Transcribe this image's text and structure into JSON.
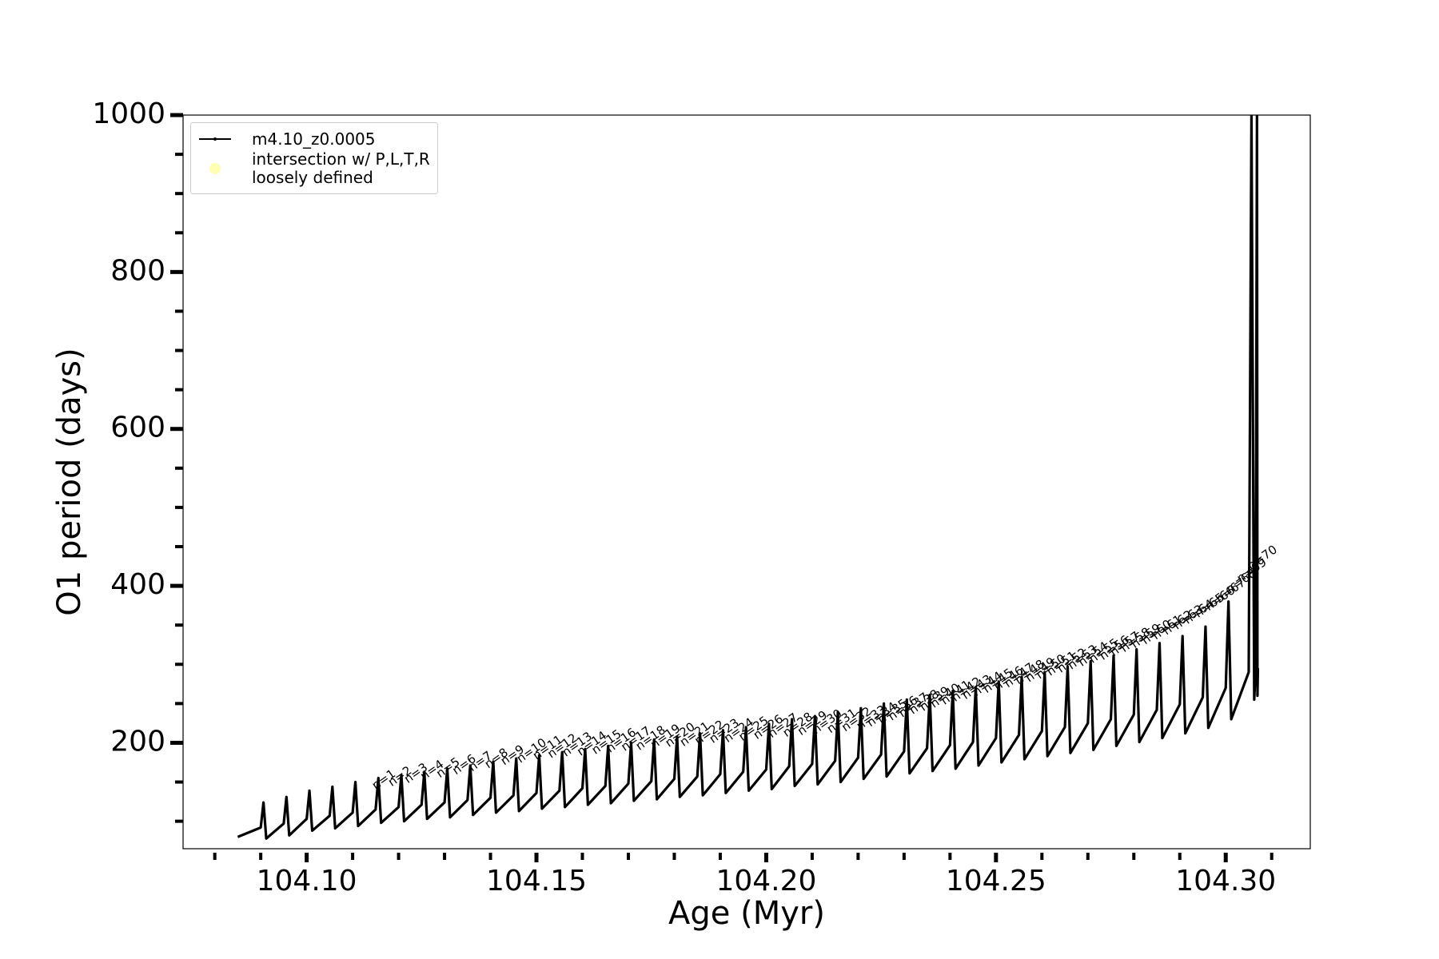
{
  "chart_data": {
    "type": "line",
    "xlabel": "Age (Myr)",
    "ylabel": "O1 period (days)",
    "xlim": [
      104.0731,
      104.3184
    ],
    "ylim": [
      65,
      1000
    ],
    "xticks": [
      {
        "value": 104.1,
        "label": "104.10"
      },
      104.15,
      {
        "value": 104.2,
        "label": "104.20"
      },
      104.25,
      {
        "value": 104.3,
        "label": "104.30"
      }
    ],
    "xticks_minor": [
      104.08,
      104.09,
      104.11,
      104.12,
      104.13,
      104.14,
      104.16,
      104.17,
      104.18,
      104.19,
      104.21,
      104.22,
      104.23,
      104.24,
      104.26,
      104.27,
      104.28,
      104.29,
      104.31
    ],
    "yticks": [
      200,
      400,
      600,
      800,
      1000
    ],
    "yticks_minor": [
      100,
      150,
      250,
      300,
      350,
      450,
      500,
      550,
      650,
      700,
      750,
      850,
      900,
      950
    ],
    "legend": "upper left",
    "series": [
      {
        "name": "m4.10_z0.0005",
        "color": "#000000",
        "marker": "dot",
        "x": [
          104.085,
          104.09,
          104.0906,
          104.0912,
          104.095,
          104.0956,
          104.0962,
          104.1,
          104.1006,
          104.1012,
          104.105,
          104.1056,
          104.1062,
          104.11,
          104.1106,
          104.1112,
          104.115,
          104.1156,
          104.1162,
          104.12,
          104.1206,
          104.1212,
          104.125,
          104.1256,
          104.1262,
          104.13,
          104.1306,
          104.1312,
          104.135,
          104.1356,
          104.1362,
          104.14,
          104.1406,
          104.1412,
          104.145,
          104.1456,
          104.1462,
          104.15,
          104.1506,
          104.1512,
          104.155,
          104.1556,
          104.1562,
          104.16,
          104.1606,
          104.1612,
          104.165,
          104.1656,
          104.1662,
          104.17,
          104.1706,
          104.1712,
          104.175,
          104.1756,
          104.1762,
          104.18,
          104.1806,
          104.1812,
          104.185,
          104.1856,
          104.1862,
          104.19,
          104.1906,
          104.1912,
          104.195,
          104.1956,
          104.1962,
          104.2,
          104.2006,
          104.2012,
          104.205,
          104.2056,
          104.2062,
          104.21,
          104.2106,
          104.2112,
          104.215,
          104.2156,
          104.2162,
          104.22,
          104.2206,
          104.2212,
          104.225,
          104.2256,
          104.2262,
          104.23,
          104.2306,
          104.2312,
          104.235,
          104.2356,
          104.2362,
          104.24,
          104.2406,
          104.2412,
          104.245,
          104.2456,
          104.2462,
          104.25,
          104.2506,
          104.2512,
          104.255,
          104.2556,
          104.2562,
          104.26,
          104.2606,
          104.2612,
          104.265,
          104.2656,
          104.2662,
          104.27,
          104.2706,
          104.2712,
          104.275,
          104.2756,
          104.2762,
          104.28,
          104.2806,
          104.2812,
          104.285,
          104.2856,
          104.2862,
          104.29,
          104.2906,
          104.2912,
          104.295,
          104.2956,
          104.2962,
          104.3,
          104.3006,
          104.3012,
          104.305,
          104.3056,
          104.3062,
          104.3065,
          104.3068,
          104.3069,
          104.307
        ],
        "values": [
          80,
          92,
          124,
          78,
          97,
          131,
          82,
          103,
          139,
          88,
          107,
          144,
          91,
          111,
          150,
          94,
          115,
          155,
          98,
          118,
          159,
          100,
          121,
          163,
          103,
          124,
          167,
          105,
          127,
          171,
          108,
          130,
          176,
          111,
          133,
          180,
          113,
          136,
          184,
          116,
          139,
          188,
          118,
          142,
          192,
          121,
          145,
          196,
          123,
          148,
          200,
          126,
          151,
          204,
          128,
          154,
          208,
          131,
          157,
          212,
          133,
          160,
          216,
          136,
          163,
          220,
          139,
          166,
          224,
          141,
          170,
          230,
          145,
          173,
          234,
          147,
          177,
          239,
          150,
          181,
          244,
          154,
          185,
          250,
          157,
          189,
          255,
          161,
          193,
          261,
          164,
          197,
          266,
          167,
          201,
          271,
          171,
          206,
          278,
          175,
          210,
          284,
          179,
          215,
          290,
          183,
          220,
          297,
          187,
          225,
          304,
          191,
          230,
          311,
          196,
          236,
          319,
          201,
          242,
          327,
          206,
          249,
          336,
          212,
          258,
          348,
          219,
          270,
          380,
          230,
          290,
          1000,
          255,
          295,
          1000,
          260,
          295
        ]
      },
      {
        "name": "intersection w/ P,L,T,R\nloosely defined",
        "color": "#ffffb3",
        "marker": "circle",
        "x": [],
        "values": []
      }
    ],
    "annotations": [
      {
        "text": "n=1",
        "x": 104.115,
        "y": 140
      },
      {
        "text": "n=2",
        "x": 104.1185,
        "y": 144
      },
      {
        "text": "n=3",
        "x": 104.122,
        "y": 148
      },
      {
        "text": "n=4",
        "x": 104.1255,
        "y": 152
      },
      {
        "text": "n=5",
        "x": 104.129,
        "y": 155
      },
      {
        "text": "n=6",
        "x": 104.1325,
        "y": 159
      },
      {
        "text": "n=7",
        "x": 104.136,
        "y": 163
      },
      {
        "text": "n=8",
        "x": 104.1395,
        "y": 167
      },
      {
        "text": "n=9",
        "x": 104.143,
        "y": 171
      },
      {
        "text": "n=10",
        "x": 104.1465,
        "y": 174
      },
      {
        "text": "n=11",
        "x": 104.15,
        "y": 178
      },
      {
        "text": "n=12",
        "x": 104.1532,
        "y": 180
      },
      {
        "text": "n=13",
        "x": 104.1564,
        "y": 182
      },
      {
        "text": "n=14",
        "x": 104.1596,
        "y": 183
      },
      {
        "text": "n=15",
        "x": 104.1628,
        "y": 185
      },
      {
        "text": "n=16",
        "x": 104.166,
        "y": 187
      },
      {
        "text": "n=17",
        "x": 104.1692,
        "y": 189
      },
      {
        "text": "n=18",
        "x": 104.1724,
        "y": 190
      },
      {
        "text": "n=19",
        "x": 104.1756,
        "y": 192
      },
      {
        "text": "n=20",
        "x": 104.1788,
        "y": 194
      },
      {
        "text": "n=21",
        "x": 104.182,
        "y": 195
      },
      {
        "text": "n=22",
        "x": 104.1852,
        "y": 197
      },
      {
        "text": "n=23",
        "x": 104.1884,
        "y": 199
      },
      {
        "text": "n=24",
        "x": 104.1916,
        "y": 200
      },
      {
        "text": "n=25",
        "x": 104.1948,
        "y": 202
      },
      {
        "text": "n=26",
        "x": 104.198,
        "y": 204
      },
      {
        "text": "n=27",
        "x": 104.2012,
        "y": 206
      },
      {
        "text": "n=28",
        "x": 104.2044,
        "y": 207
      },
      {
        "text": "n=29",
        "x": 104.2076,
        "y": 209
      },
      {
        "text": "n=30",
        "x": 104.2108,
        "y": 211
      },
      {
        "text": "n=31",
        "x": 104.214,
        "y": 212
      },
      {
        "text": "n=32",
        "x": 104.2172,
        "y": 214
      },
      {
        "text": "n=33",
        "x": 104.2204,
        "y": 216
      },
      {
        "text": "n=34",
        "x": 104.2227,
        "y": 220
      },
      {
        "text": "n=35",
        "x": 104.225,
        "y": 224
      },
      {
        "text": "n=36",
        "x": 104.2273,
        "y": 228
      },
      {
        "text": "n=37",
        "x": 104.2296,
        "y": 232
      },
      {
        "text": "n=38",
        "x": 104.2319,
        "y": 236
      },
      {
        "text": "n=39",
        "x": 104.2342,
        "y": 240
      },
      {
        "text": "n=40",
        "x": 104.2365,
        "y": 244
      },
      {
        "text": "n=41",
        "x": 104.2388,
        "y": 248
      },
      {
        "text": "n=42",
        "x": 104.2411,
        "y": 252
      },
      {
        "text": "n=43",
        "x": 104.2434,
        "y": 255
      },
      {
        "text": "n=44",
        "x": 104.2457,
        "y": 259
      },
      {
        "text": "n=45",
        "x": 104.248,
        "y": 263
      },
      {
        "text": "n=46",
        "x": 104.2503,
        "y": 266
      },
      {
        "text": "n=47",
        "x": 104.2526,
        "y": 270
      },
      {
        "text": "n=48",
        "x": 104.2549,
        "y": 274
      },
      {
        "text": "n=49",
        "x": 104.2572,
        "y": 277
      },
      {
        "text": "n=50",
        "x": 104.2595,
        "y": 281
      },
      {
        "text": "n=51",
        "x": 104.2618,
        "y": 285
      },
      {
        "text": "n=52",
        "x": 104.2641,
        "y": 289
      },
      {
        "text": "n=53",
        "x": 104.2664,
        "y": 293
      },
      {
        "text": "n=54",
        "x": 104.2687,
        "y": 297
      },
      {
        "text": "n=55",
        "x": 104.271,
        "y": 301
      },
      {
        "text": "n=56",
        "x": 104.2733,
        "y": 305
      },
      {
        "text": "n=57",
        "x": 104.2756,
        "y": 310
      },
      {
        "text": "n=58",
        "x": 104.2779,
        "y": 315
      },
      {
        "text": "n=59",
        "x": 104.2802,
        "y": 320
      },
      {
        "text": "n=60",
        "x": 104.2825,
        "y": 325
      },
      {
        "text": "n=61",
        "x": 104.2848,
        "y": 331
      },
      {
        "text": "n=62",
        "x": 104.2871,
        "y": 337
      },
      {
        "text": "n=63",
        "x": 104.2894,
        "y": 344
      },
      {
        "text": "n=64",
        "x": 104.2917,
        "y": 351
      },
      {
        "text": "n=65",
        "x": 104.294,
        "y": 359
      },
      {
        "text": "n=66",
        "x": 104.2963,
        "y": 368
      },
      {
        "text": "n=67",
        "x": 104.2986,
        "y": 378
      },
      {
        "text": "n=68",
        "x": 104.3009,
        "y": 390
      },
      {
        "text": "n=69",
        "x": 104.3032,
        "y": 404
      },
      {
        "text": "n=70",
        "x": 104.3055,
        "y": 420
      }
    ]
  }
}
